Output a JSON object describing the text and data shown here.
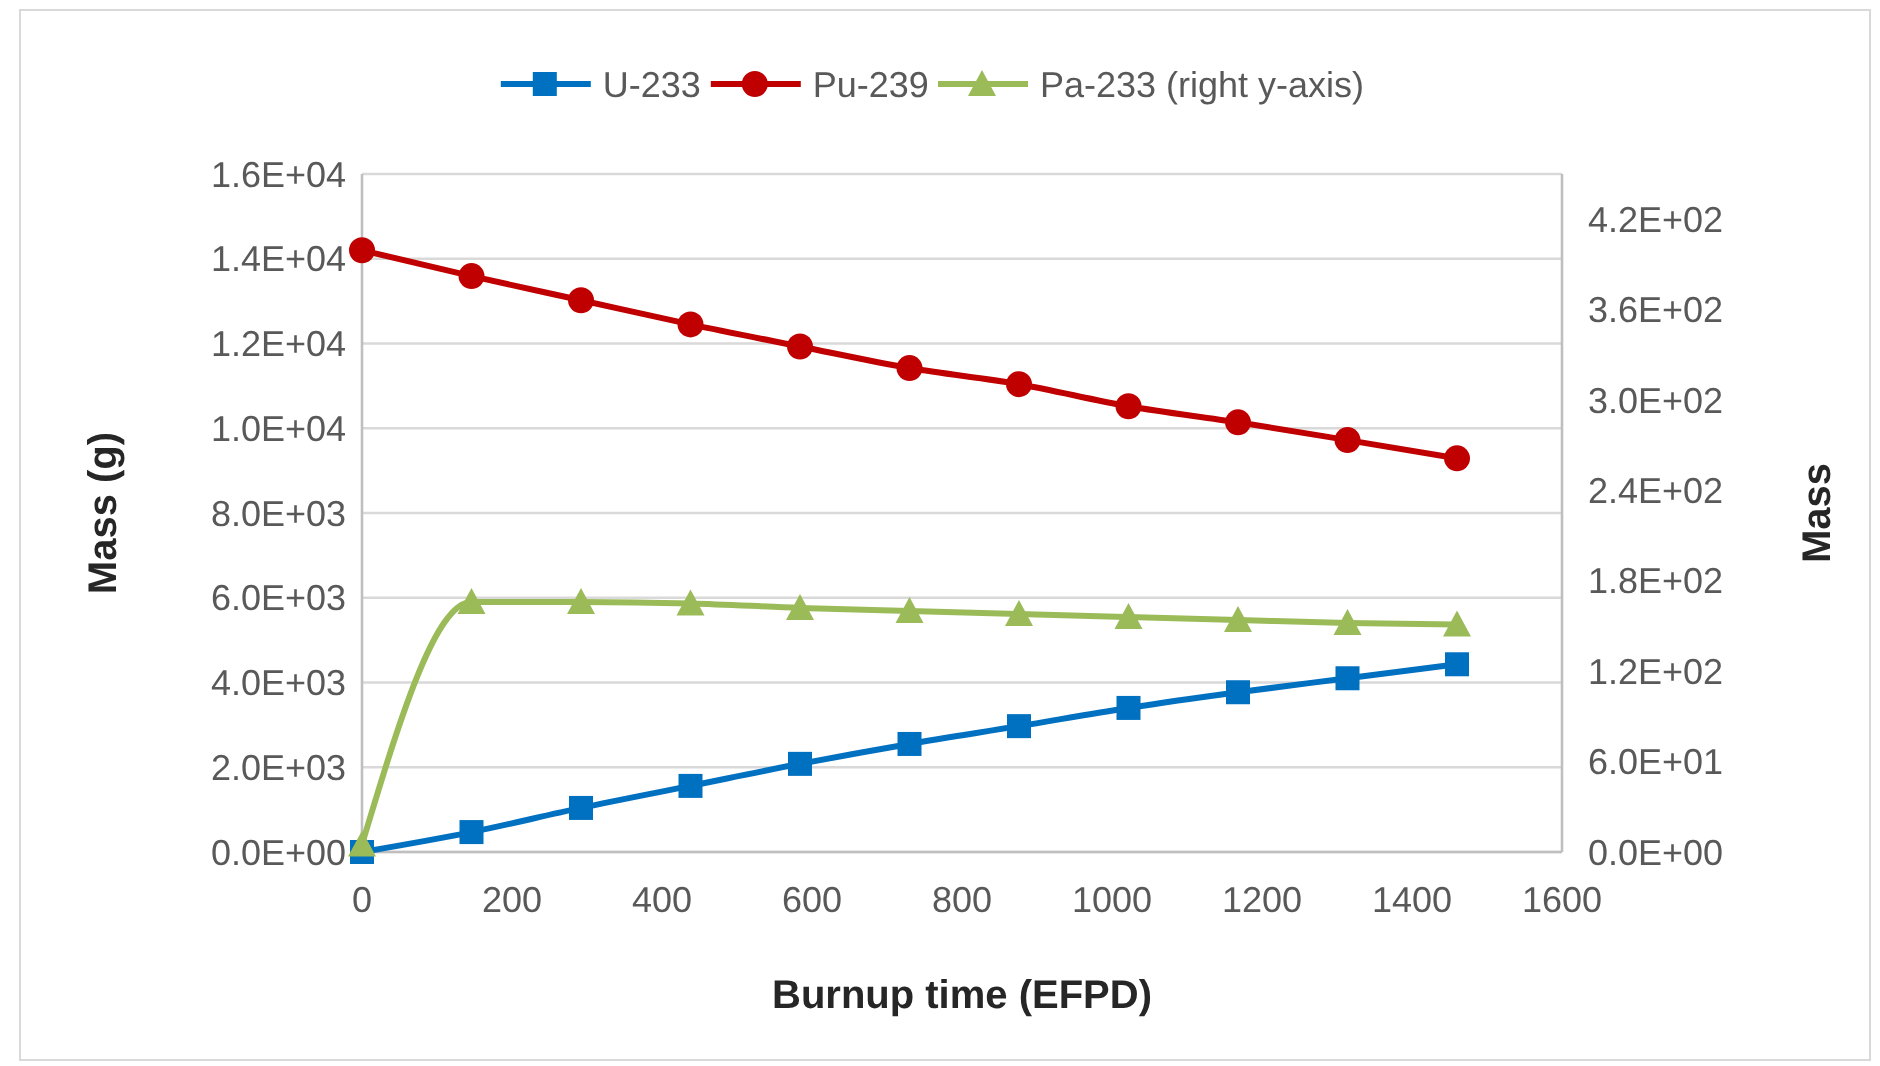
{
  "chart_data": {
    "type": "line",
    "xlabel": "Burnup time (EFPD)",
    "ylabel": "Mass (g)",
    "y2label": "Mass",
    "x": [
      0,
      146,
      292,
      438,
      584,
      730,
      876,
      1022,
      1168,
      1314,
      1460
    ],
    "xlim": [
      0,
      1600
    ],
    "xticks": [
      0,
      200,
      400,
      600,
      800,
      1000,
      1200,
      1400,
      1600
    ],
    "ylim": [
      0,
      16000
    ],
    "yticks": [
      {
        "value": 0,
        "label": "0.0E+00"
      },
      {
        "value": 2000,
        "label": "2.0E+03"
      },
      {
        "value": 4000,
        "label": "4.0E+03"
      },
      {
        "value": 6000,
        "label": "6.0E+03"
      },
      {
        "value": 8000,
        "label": "8.0E+03"
      },
      {
        "value": 10000,
        "label": "1.0E+04"
      },
      {
        "value": 12000,
        "label": "1.2E+04"
      },
      {
        "value": 14000,
        "label": "1.4E+04"
      },
      {
        "value": 16000,
        "label": "1.6E+04"
      }
    ],
    "y2lim": [
      0,
      450
    ],
    "y2ticks": [
      {
        "value": 0,
        "label": "0.0E+00"
      },
      {
        "value": 60,
        "label": "6.0E+01"
      },
      {
        "value": 120,
        "label": "1.2E+02"
      },
      {
        "value": 180,
        "label": "1.8E+02"
      },
      {
        "value": 240,
        "label": "2.4E+02"
      },
      {
        "value": 300,
        "label": "3.0E+02"
      },
      {
        "value": 360,
        "label": "3.6E+02"
      },
      {
        "value": 420,
        "label": "4.2E+02"
      }
    ],
    "grid": "y",
    "legend": "top",
    "line_style": "solid",
    "series": [
      {
        "name": "U-233",
        "color": "#0070c0",
        "marker": "square",
        "values": [
          0,
          470,
          1040,
          1560,
          2080,
          2550,
          2970,
          3400,
          3770,
          4100,
          4430
        ]
      },
      {
        "name": "Pu-239",
        "color": "#c00000",
        "marker": "circle",
        "values": [
          14200,
          13590,
          13020,
          12450,
          11930,
          11420,
          11040,
          10520,
          10140,
          9720,
          9290
        ]
      },
      {
        "name": "Pa-233 (right y-axis)",
        "color": "#9bbb59",
        "marker": "triangle",
        "axis": "y2",
        "values": [
          5,
          166,
          166,
          165,
          162,
          160,
          158,
          156,
          154,
          152,
          151
        ]
      }
    ]
  }
}
